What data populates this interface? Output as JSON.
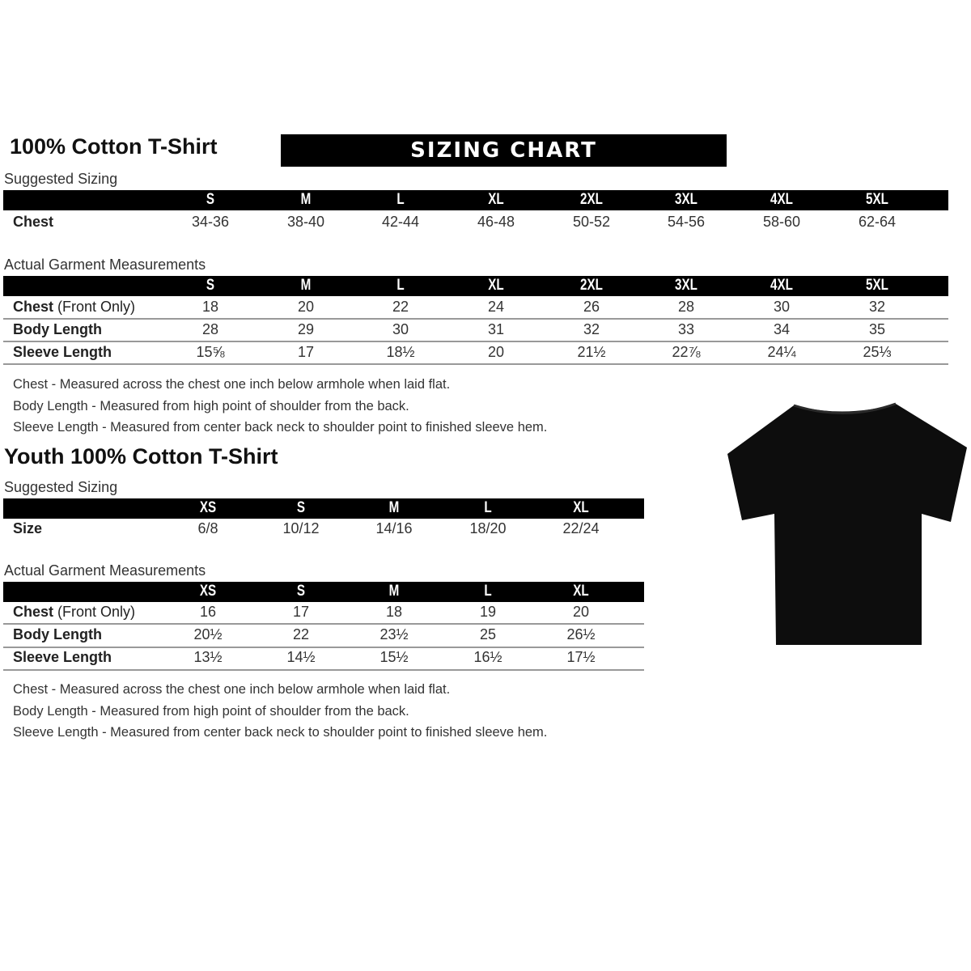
{
  "banner": "SIZING CHART",
  "adult": {
    "title": "100% Cotton T-Shirt",
    "suggested_label": "Suggested Sizing",
    "sizes": [
      "S",
      "M",
      "L",
      "XL",
      "2XL",
      "3XL",
      "4XL",
      "5XL"
    ],
    "suggested_rows": [
      {
        "label": "Chest",
        "values": [
          "34-36",
          "38-40",
          "42-44",
          "46-48",
          "50-52",
          "54-56",
          "58-60",
          "62-64"
        ]
      }
    ],
    "actual_label": "Actual Garment Measurements",
    "actual_rows": [
      {
        "label": "Chest",
        "label_suffix": "(Front Only)",
        "values": [
          "18",
          "20",
          "22",
          "24",
          "26",
          "28",
          "30",
          "32"
        ]
      },
      {
        "label": "Body Length",
        "values": [
          "28",
          "29",
          "30",
          "31",
          "32",
          "33",
          "34",
          "35"
        ]
      },
      {
        "label": "Sleeve Length",
        "values": [
          "15⅝",
          "17",
          "18½",
          "20",
          "21½",
          "22⅞",
          "24¼",
          "25⅓"
        ]
      }
    ],
    "notes": [
      "Chest - Measured across the chest one inch below armhole when laid flat.",
      "Body Length - Measured from high point of shoulder from the back.",
      "Sleeve Length - Measured from center back neck to shoulder point to finished sleeve hem."
    ]
  },
  "youth": {
    "title": "Youth 100% Cotton T-Shirt",
    "suggested_label": "Suggested Sizing",
    "sizes": [
      "XS",
      "S",
      "M",
      "L",
      "XL"
    ],
    "suggested_rows": [
      {
        "label": "Size",
        "values": [
          "6/8",
          "10/12",
          "14/16",
          "18/20",
          "22/24"
        ]
      }
    ],
    "actual_label": "Actual Garment Measurements",
    "actual_rows": [
      {
        "label": "Chest",
        "label_suffix": "(Front Only)",
        "values": [
          "16",
          "17",
          "18",
          "19",
          "20"
        ]
      },
      {
        "label": "Body Length",
        "values": [
          "20½",
          "22",
          "23½",
          "25",
          "26½"
        ]
      },
      {
        "label": "Sleeve Length",
        "values": [
          "13½",
          "14½",
          "15½",
          "16½",
          "17½"
        ]
      }
    ],
    "notes": [
      "Chest - Measured across the chest one inch below armhole when laid flat.",
      "Body Length - Measured from high point of shoulder from the back.",
      "Sleeve Length - Measured from center back neck to shoulder point to finished sleeve hem."
    ]
  },
  "image": {
    "icon": "t-shirt-icon",
    "color": "#0d0d0d"
  }
}
